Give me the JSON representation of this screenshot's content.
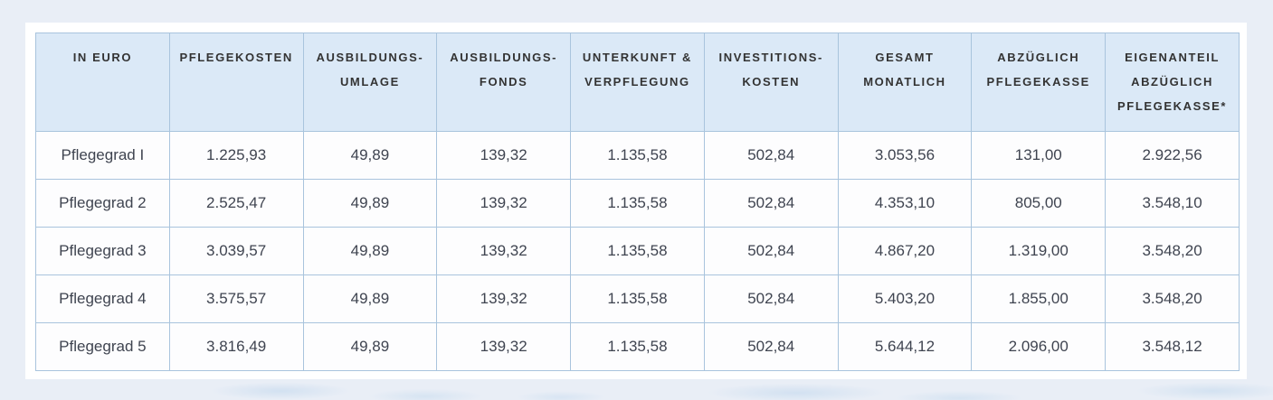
{
  "colors": {
    "page_background": "#e9eef6",
    "card_background": "#ffffff",
    "header_cell_background": "#dbe9f7",
    "grid_border": "#a9c4dd",
    "header_text": "#333333",
    "body_text": "#3f4450"
  },
  "table": {
    "columns": [
      "IN EURO",
      "PFLEGEKOSTEN",
      "AUSBILDUNGS-UMLAGE",
      "AUSBILDUNGS-FONDS",
      "UNTERKUNFT & VERPFLEGUNG",
      "INVESTITIONS-KOSTEN",
      "GESAMT MONATLICH",
      "ABZÜGLICH PFLEGEKASSE",
      "EIGENANTEIL ABZÜGLICH PFLEGEKASSE*"
    ],
    "rows": [
      {
        "label": "Pflegegrad I",
        "values": [
          "1.225,93",
          "49,89",
          "139,32",
          "1.135,58",
          "502,84",
          "3.053,56",
          "131,00",
          "2.922,56"
        ]
      },
      {
        "label": "Pflegegrad 2",
        "values": [
          "2.525,47",
          "49,89",
          "139,32",
          "1.135,58",
          "502,84",
          "4.353,10",
          "805,00",
          "3.548,10"
        ]
      },
      {
        "label": "Pflegegrad 3",
        "values": [
          "3.039,57",
          "49,89",
          "139,32",
          "1.135,58",
          "502,84",
          "4.867,20",
          "1.319,00",
          "3.548,20"
        ]
      },
      {
        "label": "Pflegegrad 4",
        "values": [
          "3.575,57",
          "49,89",
          "139,32",
          "1.135,58",
          "502,84",
          "5.403,20",
          "1.855,00",
          "3.548,20"
        ]
      },
      {
        "label": "Pflegegrad 5",
        "values": [
          "3.816,49",
          "49,89",
          "139,32",
          "1.135,58",
          "502,84",
          "5.644,12",
          "2.096,00",
          "3.548,12"
        ]
      }
    ]
  },
  "chart_data": {
    "type": "table",
    "columns": [
      "IN EURO",
      "PFLEGEKOSTEN",
      "AUSBILDUNGS-UMLAGE",
      "AUSBILDUNGS-FONDS",
      "UNTERKUNFT & VERPFLEGUNG",
      "INVESTITIONS-KOSTEN",
      "GESAMT MONATLICH",
      "ABZÜGLICH PFLEGEKASSE",
      "EIGENANTEIL ABZÜGLICH PFLEGEKASSE*"
    ],
    "rows": [
      [
        "Pflegegrad I",
        "1.225,93",
        "49,89",
        "139,32",
        "1.135,58",
        "502,84",
        "3.053,56",
        "131,00",
        "2.922,56"
      ],
      [
        "Pflegegrad 2",
        "2.525,47",
        "49,89",
        "139,32",
        "1.135,58",
        "502,84",
        "4.353,10",
        "805,00",
        "3.548,10"
      ],
      [
        "Pflegegrad 3",
        "3.039,57",
        "49,89",
        "139,32",
        "1.135,58",
        "502,84",
        "4.867,20",
        "1.319,00",
        "3.548,20"
      ],
      [
        "Pflegegrad 4",
        "3.575,57",
        "49,89",
        "139,32",
        "1.135,58",
        "502,84",
        "5.403,20",
        "1.855,00",
        "3.548,20"
      ],
      [
        "Pflegegrad 5",
        "3.816,49",
        "49,89",
        "139,32",
        "1.135,58",
        "502,84",
        "5.644,12",
        "2.096,00",
        "3.548,12"
      ]
    ]
  }
}
